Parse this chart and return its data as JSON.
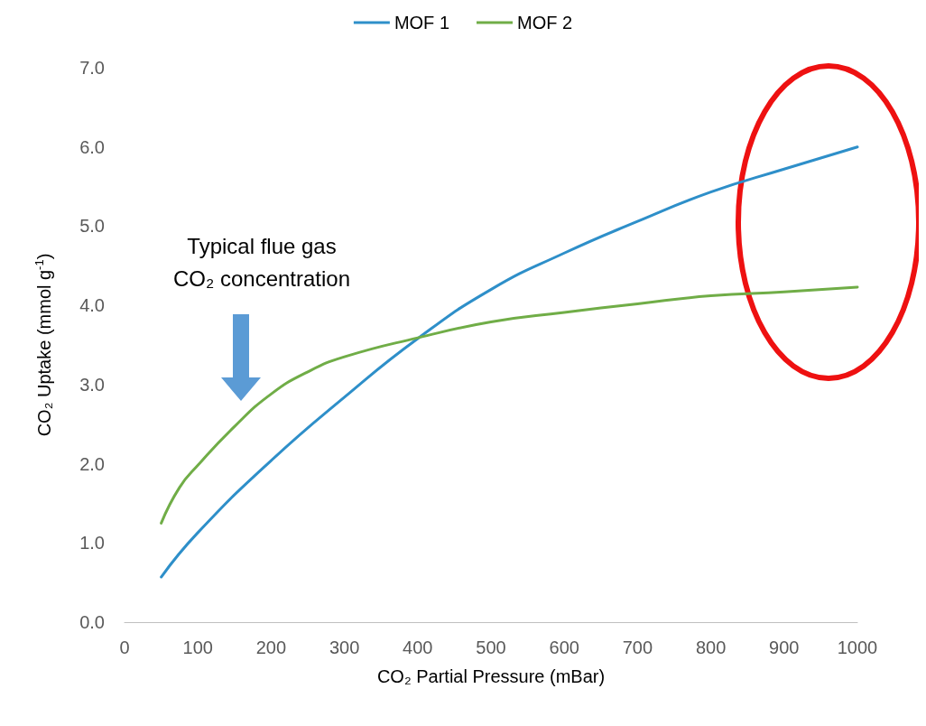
{
  "chart_data": {
    "type": "line",
    "xlabel": "CO₂ Partial Pressure (mBar)",
    "ylabel": "CO₂ Uptake (mmol g$^{-1}$)",
    "annotations": [
      "Typical flue gas\nCO₂ concentration"
    ],
    "xlim": [
      0,
      1000
    ],
    "xticks": [
      0,
      100,
      200,
      300,
      400,
      500,
      600,
      700,
      800,
      900,
      1000
    ],
    "ylim": [
      0,
      7
    ],
    "yticks": [
      {
        "value": 0,
        "label": "0.0"
      },
      {
        "value": 1,
        "label": "1.0"
      },
      {
        "value": 2,
        "label": "2.0"
      },
      {
        "value": 3,
        "label": "3.0"
      },
      {
        "value": 4,
        "label": "4.0"
      },
      {
        "value": 5,
        "label": "5.0"
      },
      {
        "value": 6,
        "label": "6.0"
      },
      {
        "value": 7,
        "label": "7.0"
      }
    ],
    "grid": false,
    "legend": "top",
    "marker": "none",
    "line_style": "solid",
    "series": [
      {
        "name": "MOF 1",
        "color": "#2e8fc9",
        "x": [
          50,
          100,
          200,
          300,
          400,
          500,
          600,
          700,
          800,
          900,
          1000
        ],
        "values": [
          0.57,
          1.13,
          2.04,
          2.84,
          3.58,
          4.2,
          4.66,
          5.06,
          5.43,
          5.72,
          6.0
        ]
      },
      {
        "name": "MOF 2",
        "color": "#70ad47",
        "x": [
          50,
          75,
          100,
          150,
          200,
          250,
          300,
          400,
          500,
          600,
          700,
          800,
          900,
          1000
        ],
        "values": [
          1.25,
          1.7,
          1.98,
          2.47,
          2.88,
          3.16,
          3.35,
          3.59,
          3.79,
          3.91,
          4.02,
          4.12,
          4.17,
          4.23
        ]
      }
    ]
  }
}
